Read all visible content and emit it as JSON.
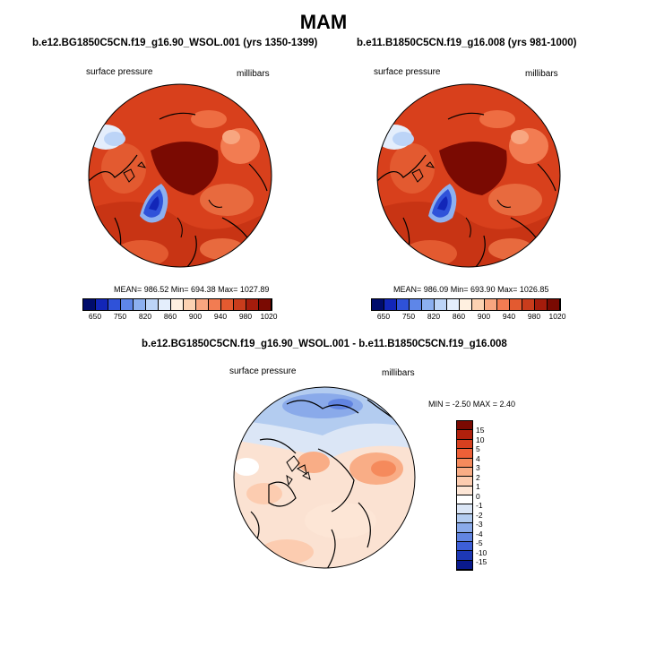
{
  "figure": {
    "season": "MAM"
  },
  "panels": [
    {
      "title": "b.e12.BG1850C5CN.f19_g16.90_WSOL.001 (yrs 1350-1399)",
      "field": "surface pressure",
      "units": "millibars",
      "stats": "MEAN= 986.52  Min= 694.38  Max= 1027.89"
    },
    {
      "title": "b.e11.B1850C5CN.f19_g16.008 (yrs 981-1000)",
      "field": "surface pressure",
      "units": "millibars",
      "stats": "MEAN= 986.09  Min= 693.90  Max= 1026.85"
    },
    {
      "title": "b.e12.BG1850C5CN.f19_g16.90_WSOL.001 - b.e11.B1850C5CN.f19_g16.008",
      "field": "surface pressure",
      "units": "millibars",
      "stats": "MIN =  -2.50 MAX =   2.40"
    }
  ],
  "colorbars": {
    "absolute": {
      "labels": [
        "650",
        "750",
        "820",
        "860",
        "900",
        "940",
        "980",
        "1020"
      ],
      "colors": [
        "#000c6b",
        "#1226b8",
        "#2f52d9",
        "#5e86e8",
        "#8cb0f0",
        "#bcd4f7",
        "#e4eefc",
        "#fff0e0",
        "#fcd2b2",
        "#f8a680",
        "#f27c52",
        "#e35a30",
        "#c93c1c",
        "#a51c0c",
        "#7a0a02"
      ]
    },
    "difference": {
      "labels": [
        "15",
        "10",
        "5",
        "4",
        "3",
        "2",
        "1",
        "0",
        "-1",
        "-2",
        "-3",
        "-4",
        "-5",
        "-10",
        "-15"
      ],
      "colors": [
        "#7a0a02",
        "#b0200c",
        "#d6401f",
        "#ee6037",
        "#f58a5c",
        "#f9ad86",
        "#fcccb0",
        "#fde6d6",
        "#ffffff",
        "#dbe6f6",
        "#b3ccf0",
        "#8aaaea",
        "#6285e2",
        "#3d5fd8",
        "#1d38b5",
        "#0a1a8c"
      ]
    }
  }
}
